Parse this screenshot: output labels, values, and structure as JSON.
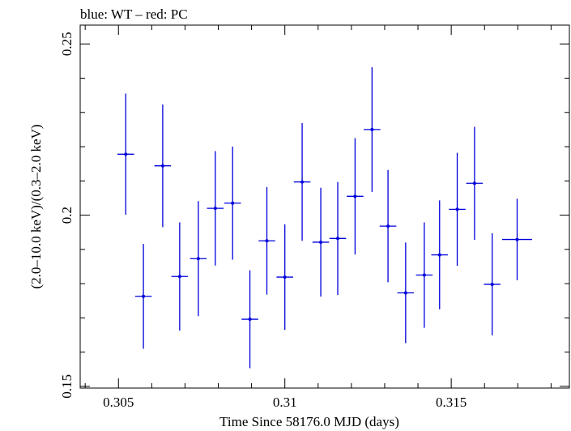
{
  "chart_data": {
    "type": "scatter",
    "title": "blue: WT – red: PC",
    "xlabel": "Time Since 58176.0 MJD (days)",
    "ylabel": "(2.0–10.0 keV)/(0.3–2.0 keV)",
    "xlim": [
      0.30385,
      0.31855
    ],
    "ylim": [
      0.1495,
      0.2555
    ],
    "x_ticks": [
      0.305,
      0.31,
      0.315
    ],
    "x_tick_labels": [
      "0.305",
      "0.31",
      "0.315"
    ],
    "y_ticks": [
      0.15,
      0.2,
      0.25
    ],
    "y_tick_labels": [
      "0.15",
      "0.2",
      "0.25"
    ],
    "grid": false,
    "series": [
      {
        "name": "WT",
        "color": "#0000dd",
        "points": [
          {
            "x": 0.30522,
            "xerr": 0.00025,
            "y": 0.2178,
            "yerr": 0.0177
          },
          {
            "x": 0.30575,
            "xerr": 0.00025,
            "y": 0.1763,
            "yerr": 0.0153
          },
          {
            "x": 0.30633,
            "xerr": 0.00025,
            "y": 0.2144,
            "yerr": 0.0179
          },
          {
            "x": 0.30684,
            "xerr": 0.00025,
            "y": 0.1821,
            "yerr": 0.0158
          },
          {
            "x": 0.3074,
            "xerr": 0.00025,
            "y": 0.1873,
            "yerr": 0.0168
          },
          {
            "x": 0.30791,
            "xerr": 0.00025,
            "y": 0.202,
            "yerr": 0.0167
          },
          {
            "x": 0.30843,
            "xerr": 0.00025,
            "y": 0.2035,
            "yerr": 0.0165
          },
          {
            "x": 0.30895,
            "xerr": 0.00025,
            "y": 0.1696,
            "yerr": 0.0143
          },
          {
            "x": 0.30946,
            "xerr": 0.00025,
            "y": 0.1925,
            "yerr": 0.0157
          },
          {
            "x": 0.31,
            "xerr": 0.00025,
            "y": 0.1819,
            "yerr": 0.0154
          },
          {
            "x": 0.31052,
            "xerr": 0.00025,
            "y": 0.2097,
            "yerr": 0.0172
          },
          {
            "x": 0.31108,
            "xerr": 0.00025,
            "y": 0.1921,
            "yerr": 0.0159
          },
          {
            "x": 0.31159,
            "xerr": 0.00025,
            "y": 0.1932,
            "yerr": 0.0165
          },
          {
            "x": 0.31211,
            "xerr": 0.00025,
            "y": 0.2055,
            "yerr": 0.017
          },
          {
            "x": 0.31262,
            "xerr": 0.00025,
            "y": 0.225,
            "yerr": 0.0182
          },
          {
            "x": 0.3131,
            "xerr": 0.00025,
            "y": 0.1968,
            "yerr": 0.0164
          },
          {
            "x": 0.31363,
            "xerr": 0.00025,
            "y": 0.1773,
            "yerr": 0.0147
          },
          {
            "x": 0.31419,
            "xerr": 0.00025,
            "y": 0.1825,
            "yerr": 0.0154
          },
          {
            "x": 0.31465,
            "xerr": 0.00025,
            "y": 0.1884,
            "yerr": 0.0159
          },
          {
            "x": 0.31518,
            "xerr": 0.00025,
            "y": 0.2017,
            "yerr": 0.0165
          },
          {
            "x": 0.3157,
            "xerr": 0.00025,
            "y": 0.2093,
            "yerr": 0.0165
          },
          {
            "x": 0.31623,
            "xerr": 0.00025,
            "y": 0.1798,
            "yerr": 0.0149
          },
          {
            "x": 0.31698,
            "xerr": 0.00045,
            "y": 0.1929,
            "yerr": 0.0119
          }
        ]
      }
    ]
  }
}
